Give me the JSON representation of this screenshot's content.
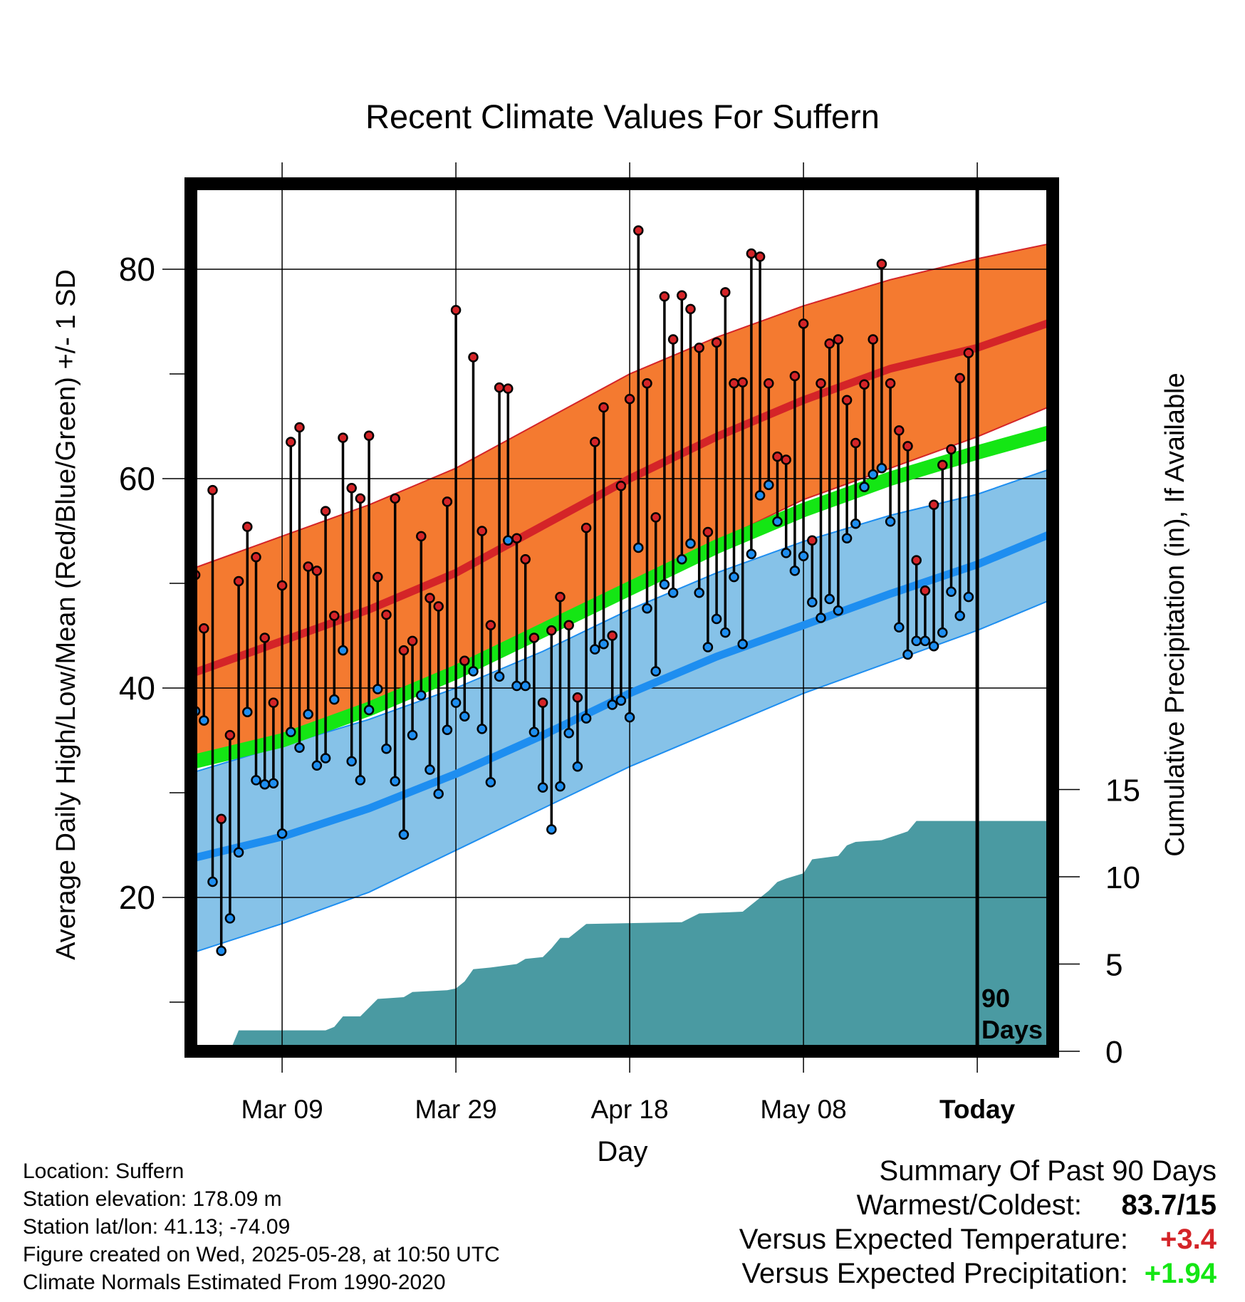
{
  "chart_data": {
    "type": "line",
    "title": "Recent Climate Values For Suffern",
    "xlabel": "Day",
    "ylabel": "Average Daily High/Low/Mean (Red/Blue/Green) +/- 1 SD",
    "y2label": "Cumulative Precipitation (in), If Available",
    "ylim": [
      5,
      88
    ],
    "y2lim": [
      0,
      20
    ],
    "x_ticks": [
      "Mar 09",
      "Mar 29",
      "Apr 18",
      "May 08",
      "Today"
    ],
    "y_ticks": [
      20,
      40,
      60,
      80
    ],
    "y2_ticks": [
      0,
      5,
      10,
      15
    ],
    "today_marker": "90\nDays",
    "grid": true,
    "normal_high": [
      [
        "2025-02-27",
        41.5
      ],
      [
        "2025-03-09",
        44.5
      ],
      [
        "2025-03-19",
        47.5
      ],
      [
        "2025-03-29",
        51.0
      ],
      [
        "2025-04-08",
        55.5
      ],
      [
        "2025-04-18",
        60.0
      ],
      [
        "2025-04-28",
        64.0
      ],
      [
        "2025-05-08",
        67.5
      ],
      [
        "2025-05-18",
        70.5
      ],
      [
        "2025-05-28",
        72.5
      ],
      [
        "2025-06-06",
        75.0
      ]
    ],
    "normal_high_sd_upper": [
      [
        "2025-02-27",
        51.5
      ],
      [
        "2025-03-09",
        54.5
      ],
      [
        "2025-03-19",
        57.5
      ],
      [
        "2025-03-29",
        61.0
      ],
      [
        "2025-04-08",
        65.5
      ],
      [
        "2025-04-18",
        70.0
      ],
      [
        "2025-04-28",
        73.5
      ],
      [
        "2025-05-08",
        76.5
      ],
      [
        "2025-05-18",
        79.0
      ],
      [
        "2025-05-28",
        81.0
      ],
      [
        "2025-06-06",
        82.5
      ]
    ],
    "normal_high_sd_lower": [
      [
        "2025-02-27",
        33.0
      ],
      [
        "2025-03-09",
        35.0
      ],
      [
        "2025-03-19",
        38.0
      ],
      [
        "2025-03-29",
        41.5
      ],
      [
        "2025-04-08",
        45.5
      ],
      [
        "2025-04-18",
        50.0
      ],
      [
        "2025-04-28",
        54.0
      ],
      [
        "2025-05-08",
        58.0
      ],
      [
        "2025-05-18",
        61.0
      ],
      [
        "2025-05-28",
        64.0
      ],
      [
        "2025-06-06",
        67.0
      ]
    ],
    "normal_mean": [
      [
        "2025-02-27",
        33.0
      ],
      [
        "2025-03-09",
        35.0
      ],
      [
        "2025-03-19",
        38.0
      ],
      [
        "2025-03-29",
        41.5
      ],
      [
        "2025-04-08",
        45.5
      ],
      [
        "2025-04-18",
        49.5
      ],
      [
        "2025-04-28",
        53.5
      ],
      [
        "2025-05-08",
        57.0
      ],
      [
        "2025-05-18",
        60.0
      ],
      [
        "2025-05-28",
        62.5
      ],
      [
        "2025-06-06",
        64.5
      ]
    ],
    "normal_low": [
      [
        "2025-02-27",
        23.8
      ],
      [
        "2025-03-09",
        25.8
      ],
      [
        "2025-03-19",
        28.5
      ],
      [
        "2025-03-29",
        31.8
      ],
      [
        "2025-04-08",
        35.5
      ],
      [
        "2025-04-18",
        39.5
      ],
      [
        "2025-04-28",
        43.0
      ],
      [
        "2025-05-08",
        46.0
      ],
      [
        "2025-05-18",
        49.0
      ],
      [
        "2025-05-28",
        51.8
      ],
      [
        "2025-06-06",
        54.8
      ]
    ],
    "normal_low_sd_upper": [
      [
        "2025-02-27",
        32.0
      ],
      [
        "2025-03-09",
        34.5
      ],
      [
        "2025-03-19",
        37.0
      ],
      [
        "2025-03-29",
        40.0
      ],
      [
        "2025-04-08",
        43.5
      ],
      [
        "2025-04-18",
        47.5
      ],
      [
        "2025-04-28",
        51.0
      ],
      [
        "2025-05-08",
        54.0
      ],
      [
        "2025-05-18",
        56.5
      ],
      [
        "2025-05-28",
        58.5
      ],
      [
        "2025-06-06",
        61.0
      ]
    ],
    "normal_low_sd_lower": [
      [
        "2025-02-27",
        14.8
      ],
      [
        "2025-03-09",
        17.5
      ],
      [
        "2025-03-19",
        20.5
      ],
      [
        "2025-03-29",
        24.5
      ],
      [
        "2025-04-08",
        28.5
      ],
      [
        "2025-04-18",
        32.5
      ],
      [
        "2025-04-28",
        36.0
      ],
      [
        "2025-05-08",
        39.5
      ],
      [
        "2025-05-18",
        42.5
      ],
      [
        "2025-05-28",
        45.5
      ],
      [
        "2025-06-06",
        48.5
      ]
    ],
    "daily_observations": [
      {
        "date": "2025-02-27",
        "high": 50.8,
        "low": 37.8
      },
      {
        "date": "2025-02-28",
        "high": 45.7,
        "low": 36.9
      },
      {
        "date": "2025-03-01",
        "high": 58.9,
        "low": 21.5
      },
      {
        "date": "2025-03-02",
        "high": 27.5,
        "low": 14.9
      },
      {
        "date": "2025-03-03",
        "high": 35.5,
        "low": 18.0
      },
      {
        "date": "2025-03-04",
        "high": 50.2,
        "low": 24.3
      },
      {
        "date": "2025-03-05",
        "high": 55.4,
        "low": 37.7
      },
      {
        "date": "2025-03-06",
        "high": 52.5,
        "low": 31.2
      },
      {
        "date": "2025-03-07",
        "high": 44.8,
        "low": 30.8
      },
      {
        "date": "2025-03-08",
        "high": 38.6,
        "low": 30.9
      },
      {
        "date": "2025-03-09",
        "high": 49.8,
        "low": 26.1
      },
      {
        "date": "2025-03-10",
        "high": 63.5,
        "low": 35.8
      },
      {
        "date": "2025-03-11",
        "high": 64.9,
        "low": 34.3
      },
      {
        "date": "2025-03-12",
        "high": 51.6,
        "low": 37.5
      },
      {
        "date": "2025-03-13",
        "high": 51.2,
        "low": 32.6
      },
      {
        "date": "2025-03-14",
        "high": 56.9,
        "low": 33.3
      },
      {
        "date": "2025-03-15",
        "high": 46.9,
        "low": 38.9
      },
      {
        "date": "2025-03-16",
        "high": 63.9,
        "low": 43.6
      },
      {
        "date": "2025-03-17",
        "high": 59.1,
        "low": 33.0
      },
      {
        "date": "2025-03-18",
        "high": 58.1,
        "low": 31.2
      },
      {
        "date": "2025-03-19",
        "high": 64.1,
        "low": 37.9
      },
      {
        "date": "2025-03-20",
        "high": 50.6,
        "low": 39.9
      },
      {
        "date": "2025-03-21",
        "high": 47.0,
        "low": 34.2
      },
      {
        "date": "2025-03-22",
        "high": 58.1,
        "low": 31.1
      },
      {
        "date": "2025-03-23",
        "high": 43.6,
        "low": 26.0
      },
      {
        "date": "2025-03-24",
        "high": 44.5,
        "low": 35.5
      },
      {
        "date": "2025-03-25",
        "high": 54.5,
        "low": 39.3
      },
      {
        "date": "2025-03-26",
        "high": 48.6,
        "low": 32.2
      },
      {
        "date": "2025-03-27",
        "high": 47.8,
        "low": 29.9
      },
      {
        "date": "2025-03-28",
        "high": 57.8,
        "low": 36.0
      },
      {
        "date": "2025-03-29",
        "high": 76.1,
        "low": 38.6
      },
      {
        "date": "2025-03-30",
        "high": 42.6,
        "low": 37.3
      },
      {
        "date": "2025-03-31",
        "high": 71.6,
        "low": 41.6
      },
      {
        "date": "2025-04-01",
        "high": 55.0,
        "low": 36.1
      },
      {
        "date": "2025-04-02",
        "high": 46.0,
        "low": 31.0
      },
      {
        "date": "2025-04-03",
        "high": 68.7,
        "low": 41.1
      },
      {
        "date": "2025-04-04",
        "high": 68.6,
        "low": 54.1
      },
      {
        "date": "2025-04-05",
        "high": 54.3,
        "low": 40.2
      },
      {
        "date": "2025-04-06",
        "high": 52.3,
        "low": 40.2
      },
      {
        "date": "2025-04-07",
        "high": 44.8,
        "low": 35.8
      },
      {
        "date": "2025-04-08",
        "high": 38.6,
        "low": 30.5
      },
      {
        "date": "2025-04-09",
        "high": 45.5,
        "low": 26.5
      },
      {
        "date": "2025-04-10",
        "high": 48.7,
        "low": 30.6
      },
      {
        "date": "2025-04-11",
        "high": 46.0,
        "low": 35.7
      },
      {
        "date": "2025-04-12",
        "high": 39.1,
        "low": 32.5
      },
      {
        "date": "2025-04-13",
        "high": 55.3,
        "low": 37.1
      },
      {
        "date": "2025-04-14",
        "high": 63.5,
        "low": 43.7
      },
      {
        "date": "2025-04-15",
        "high": 66.8,
        "low": 44.2
      },
      {
        "date": "2025-04-16",
        "high": 45.0,
        "low": 38.4
      },
      {
        "date": "2025-04-17",
        "high": 59.3,
        "low": 38.8
      },
      {
        "date": "2025-04-18",
        "high": 67.6,
        "low": 37.2
      },
      {
        "date": "2025-04-19",
        "high": 83.7,
        "low": 53.4
      },
      {
        "date": "2025-04-20",
        "high": 69.1,
        "low": 47.6
      },
      {
        "date": "2025-04-21",
        "high": 56.3,
        "low": 41.6
      },
      {
        "date": "2025-04-22",
        "high": 77.4,
        "low": 49.9
      },
      {
        "date": "2025-04-23",
        "high": 73.3,
        "low": 49.1
      },
      {
        "date": "2025-04-24",
        "high": 77.5,
        "low": 52.3
      },
      {
        "date": "2025-04-25",
        "high": 76.2,
        "low": 53.8
      },
      {
        "date": "2025-04-26",
        "high": 72.5,
        "low": 49.1
      },
      {
        "date": "2025-04-27",
        "high": 54.9,
        "low": 43.9
      },
      {
        "date": "2025-04-28",
        "high": 73.0,
        "low": 46.6
      },
      {
        "date": "2025-04-29",
        "high": 77.8,
        "low": 45.3
      },
      {
        "date": "2025-04-30",
        "high": 69.1,
        "low": 50.6
      },
      {
        "date": "2025-05-01",
        "high": 69.2,
        "low": 44.2
      },
      {
        "date": "2025-05-02",
        "high": 81.5,
        "low": 52.8
      },
      {
        "date": "2025-05-03",
        "high": 81.2,
        "low": 58.4
      },
      {
        "date": "2025-05-04",
        "high": 69.1,
        "low": 59.4
      },
      {
        "date": "2025-05-05",
        "high": 62.1,
        "low": 55.9
      },
      {
        "date": "2025-05-06",
        "high": 61.8,
        "low": 52.9
      },
      {
        "date": "2025-05-07",
        "high": 69.8,
        "low": 51.2
      },
      {
        "date": "2025-05-08",
        "high": 74.8,
        "low": 52.6
      },
      {
        "date": "2025-05-09",
        "high": 54.1,
        "low": 48.2
      },
      {
        "date": "2025-05-10",
        "high": 69.1,
        "low": 46.7
      },
      {
        "date": "2025-05-11",
        "high": 72.9,
        "low": 48.5
      },
      {
        "date": "2025-05-12",
        "high": 73.3,
        "low": 47.4
      },
      {
        "date": "2025-05-13",
        "high": 67.5,
        "low": 54.3
      },
      {
        "date": "2025-05-14",
        "high": 63.4,
        "low": 55.7
      },
      {
        "date": "2025-05-15",
        "high": 69.0,
        "low": 59.2
      },
      {
        "date": "2025-05-16",
        "high": 73.3,
        "low": 60.4
      },
      {
        "date": "2025-05-17",
        "high": 80.5,
        "low": 61.0
      },
      {
        "date": "2025-05-18",
        "high": 69.1,
        "low": 55.9
      },
      {
        "date": "2025-05-19",
        "high": 64.6,
        "low": 45.8
      },
      {
        "date": "2025-05-20",
        "high": 63.1,
        "low": 43.2
      },
      {
        "date": "2025-05-21",
        "high": 52.2,
        "low": 44.5
      },
      {
        "date": "2025-05-22",
        "high": 49.3,
        "low": 44.5
      },
      {
        "date": "2025-05-23",
        "high": 57.5,
        "low": 44.0
      },
      {
        "date": "2025-05-24",
        "high": 61.3,
        "low": 45.3
      },
      {
        "date": "2025-05-25",
        "high": 62.8,
        "low": 49.2
      },
      {
        "date": "2025-05-26",
        "high": 69.6,
        "low": 46.9
      },
      {
        "date": "2025-05-27",
        "high": 72.0,
        "low": 48.7
      }
    ],
    "cumulative_precipitation": [
      [
        "2025-02-27",
        0
      ],
      [
        "2025-03-03",
        0
      ],
      [
        "2025-03-04",
        1.2
      ],
      [
        "2025-03-05",
        1.2
      ],
      [
        "2025-03-14",
        1.2
      ],
      [
        "2025-03-15",
        1.4
      ],
      [
        "2025-03-16",
        2.0
      ],
      [
        "2025-03-18",
        2.0
      ],
      [
        "2025-03-19",
        2.5
      ],
      [
        "2025-03-20",
        3.0
      ],
      [
        "2025-03-23",
        3.1
      ],
      [
        "2025-03-24",
        3.4
      ],
      [
        "2025-03-28",
        3.5
      ],
      [
        "2025-03-29",
        3.6
      ],
      [
        "2025-03-30",
        4.0
      ],
      [
        "2025-03-31",
        4.7
      ],
      [
        "2025-04-02",
        4.8
      ],
      [
        "2025-04-05",
        5.0
      ],
      [
        "2025-04-06",
        5.3
      ],
      [
        "2025-04-08",
        5.4
      ],
      [
        "2025-04-09",
        5.9
      ],
      [
        "2025-04-10",
        6.5
      ],
      [
        "2025-04-11",
        6.5
      ],
      [
        "2025-04-13",
        7.3
      ],
      [
        "2025-04-24",
        7.4
      ],
      [
        "2025-04-26",
        7.9
      ],
      [
        "2025-05-01",
        8.0
      ],
      [
        "2025-05-02",
        8.4
      ],
      [
        "2025-05-04",
        9.2
      ],
      [
        "2025-05-05",
        9.7
      ],
      [
        "2025-05-06",
        9.9
      ],
      [
        "2025-05-08",
        10.2
      ],
      [
        "2025-05-09",
        11.0
      ],
      [
        "2025-05-12",
        11.2
      ],
      [
        "2025-05-13",
        11.8
      ],
      [
        "2025-05-14",
        12.0
      ],
      [
        "2025-05-17",
        12.1
      ],
      [
        "2025-05-20",
        12.6
      ],
      [
        "2025-05-21",
        13.2
      ],
      [
        "2025-06-06",
        13.2
      ]
    ]
  },
  "info": {
    "location": "Location: Suffern",
    "elevation": "Station elevation: 178.09 m",
    "latlon": "Station lat/lon: 41.13; -74.09",
    "created": "Figure created on Wed, 2025-05-28, at 10:50 UTC",
    "normals": "Climate Normals Estimated From 1990-2020"
  },
  "summary": {
    "title": "Summary Of Past 90 Days",
    "warm_cold_label": "Warmest/Coldest:",
    "warm_cold_value": "83.7/15",
    "temp_label": "Versus Expected Temperature:",
    "temp_value": "+3.4",
    "precip_label": "Versus Expected Precipitation:",
    "precip_value": "+1.94"
  },
  "colors": {
    "high_band": "#f47a30",
    "high_line": "#d42428",
    "mean_band": "#14e614",
    "low_band": "#86c2e8",
    "low_line": "#1e8ef0",
    "precip": "#4a9aa2",
    "high_dot": "#d42428",
    "low_dot": "#1e8ef0",
    "temp_delta": "#d42428",
    "precip_delta": "#14e614"
  }
}
